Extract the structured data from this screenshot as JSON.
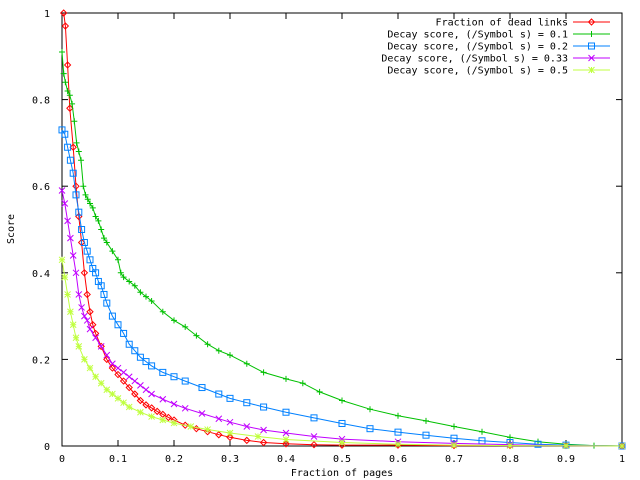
{
  "chart_data": {
    "type": "line",
    "title": "",
    "xlabel": "Fraction of pages",
    "ylabel": "Score",
    "xlim": [
      0,
      1
    ],
    "ylim": [
      0,
      1
    ],
    "xticks": [
      0,
      0.1,
      0.2,
      0.3,
      0.4,
      0.5,
      0.6,
      0.7,
      0.8,
      0.9,
      1
    ],
    "xtick_labels": [
      "0",
      "0.1",
      "0.2",
      "0.3",
      "0.4",
      "0.5",
      "0.6",
      "0.7",
      "0.8",
      "0.9",
      "1"
    ],
    "yticks": [
      0,
      0.2,
      0.4,
      0.6,
      0.8,
      1
    ],
    "ytick_labels": [
      "0",
      "0.2",
      "0.4",
      "0.6",
      "0.8",
      "1"
    ],
    "legend_position": "top-right",
    "grid": false,
    "series": [
      {
        "name": "Fraction of dead links",
        "color": "#ff0000",
        "marker": "diamond",
        "x": [
          0.003,
          0.006,
          0.01,
          0.014,
          0.02,
          0.025,
          0.03,
          0.035,
          0.04,
          0.045,
          0.05,
          0.055,
          0.06,
          0.07,
          0.08,
          0.09,
          0.1,
          0.11,
          0.12,
          0.13,
          0.14,
          0.15,
          0.16,
          0.17,
          0.18,
          0.19,
          0.2,
          0.22,
          0.24,
          0.26,
          0.28,
          0.3,
          0.33,
          0.36,
          0.4,
          0.45,
          0.5,
          0.6,
          0.7,
          0.8,
          0.9,
          1.0
        ],
        "y": [
          1.0,
          0.97,
          0.88,
          0.78,
          0.69,
          0.6,
          0.53,
          0.47,
          0.4,
          0.35,
          0.31,
          0.28,
          0.26,
          0.23,
          0.2,
          0.18,
          0.165,
          0.15,
          0.135,
          0.12,
          0.105,
          0.095,
          0.088,
          0.08,
          0.073,
          0.066,
          0.06,
          0.048,
          0.04,
          0.033,
          0.026,
          0.02,
          0.013,
          0.008,
          0.005,
          0.003,
          0.002,
          0.002,
          0.001,
          0.001,
          0.001,
          0.0
        ]
      },
      {
        "name": "Decay score, (/Symbol s) = 0.1",
        "color": "#00c000",
        "marker": "plus",
        "x": [
          0.0,
          0.003,
          0.006,
          0.01,
          0.014,
          0.018,
          0.022,
          0.026,
          0.03,
          0.034,
          0.038,
          0.042,
          0.046,
          0.05,
          0.055,
          0.06,
          0.065,
          0.07,
          0.075,
          0.08,
          0.09,
          0.1,
          0.105,
          0.11,
          0.12,
          0.13,
          0.14,
          0.15,
          0.16,
          0.18,
          0.2,
          0.22,
          0.24,
          0.26,
          0.28,
          0.3,
          0.33,
          0.36,
          0.4,
          0.43,
          0.46,
          0.5,
          0.55,
          0.6,
          0.65,
          0.7,
          0.75,
          0.8,
          0.85,
          0.9,
          0.95,
          1.0
        ],
        "y": [
          0.91,
          0.86,
          0.84,
          0.82,
          0.81,
          0.79,
          0.75,
          0.7,
          0.68,
          0.66,
          0.6,
          0.58,
          0.57,
          0.56,
          0.55,
          0.53,
          0.52,
          0.5,
          0.48,
          0.47,
          0.45,
          0.43,
          0.4,
          0.39,
          0.38,
          0.37,
          0.355,
          0.345,
          0.335,
          0.31,
          0.29,
          0.275,
          0.255,
          0.235,
          0.22,
          0.21,
          0.19,
          0.17,
          0.155,
          0.145,
          0.125,
          0.105,
          0.085,
          0.07,
          0.058,
          0.045,
          0.033,
          0.02,
          0.01,
          0.004,
          0.001,
          0.0
        ]
      },
      {
        "name": "Decay score, (/Symbol s) = 0.2",
        "color": "#0080ff",
        "marker": "square",
        "x": [
          0.0,
          0.005,
          0.01,
          0.015,
          0.02,
          0.025,
          0.03,
          0.035,
          0.04,
          0.045,
          0.05,
          0.055,
          0.06,
          0.065,
          0.07,
          0.075,
          0.08,
          0.09,
          0.1,
          0.11,
          0.12,
          0.13,
          0.14,
          0.15,
          0.16,
          0.18,
          0.2,
          0.22,
          0.25,
          0.28,
          0.3,
          0.33,
          0.36,
          0.4,
          0.45,
          0.5,
          0.55,
          0.6,
          0.65,
          0.7,
          0.75,
          0.8,
          0.85,
          0.9,
          1.0
        ],
        "y": [
          0.73,
          0.72,
          0.69,
          0.66,
          0.63,
          0.58,
          0.54,
          0.5,
          0.47,
          0.45,
          0.43,
          0.41,
          0.4,
          0.38,
          0.37,
          0.35,
          0.33,
          0.3,
          0.28,
          0.26,
          0.235,
          0.22,
          0.205,
          0.195,
          0.185,
          0.17,
          0.16,
          0.15,
          0.135,
          0.12,
          0.11,
          0.1,
          0.09,
          0.078,
          0.065,
          0.052,
          0.04,
          0.032,
          0.025,
          0.018,
          0.012,
          0.008,
          0.004,
          0.002,
          0.0
        ]
      },
      {
        "name": "Decay score, (/Symbol s) = 0.33",
        "color": "#c000ff",
        "marker": "cross",
        "x": [
          0.0,
          0.005,
          0.01,
          0.015,
          0.02,
          0.025,
          0.03,
          0.035,
          0.04,
          0.045,
          0.05,
          0.06,
          0.07,
          0.08,
          0.09,
          0.1,
          0.11,
          0.12,
          0.13,
          0.14,
          0.15,
          0.16,
          0.18,
          0.2,
          0.22,
          0.25,
          0.28,
          0.3,
          0.33,
          0.36,
          0.4,
          0.45,
          0.5,
          0.6,
          0.7,
          0.8,
          0.9,
          1.0
        ],
        "y": [
          0.59,
          0.56,
          0.52,
          0.48,
          0.44,
          0.4,
          0.35,
          0.32,
          0.3,
          0.29,
          0.27,
          0.25,
          0.23,
          0.21,
          0.19,
          0.18,
          0.17,
          0.16,
          0.15,
          0.14,
          0.13,
          0.12,
          0.108,
          0.097,
          0.087,
          0.075,
          0.063,
          0.055,
          0.045,
          0.037,
          0.03,
          0.022,
          0.016,
          0.01,
          0.006,
          0.003,
          0.001,
          0.0
        ]
      },
      {
        "name": "Decay score, (/Symbol s) = 0.5",
        "color": "#c0ff40",
        "marker": "star",
        "x": [
          0.0,
          0.005,
          0.01,
          0.015,
          0.02,
          0.025,
          0.03,
          0.04,
          0.05,
          0.06,
          0.07,
          0.08,
          0.09,
          0.1,
          0.11,
          0.12,
          0.14,
          0.16,
          0.18,
          0.2,
          0.23,
          0.26,
          0.3,
          0.35,
          0.4,
          0.5,
          0.6,
          0.7,
          0.8,
          0.9,
          1.0
        ],
        "y": [
          0.43,
          0.39,
          0.35,
          0.31,
          0.28,
          0.25,
          0.23,
          0.2,
          0.18,
          0.16,
          0.145,
          0.13,
          0.12,
          0.11,
          0.1,
          0.09,
          0.078,
          0.068,
          0.06,
          0.053,
          0.045,
          0.038,
          0.03,
          0.022,
          0.015,
          0.008,
          0.004,
          0.002,
          0.001,
          0.0005,
          0.0
        ]
      }
    ]
  }
}
